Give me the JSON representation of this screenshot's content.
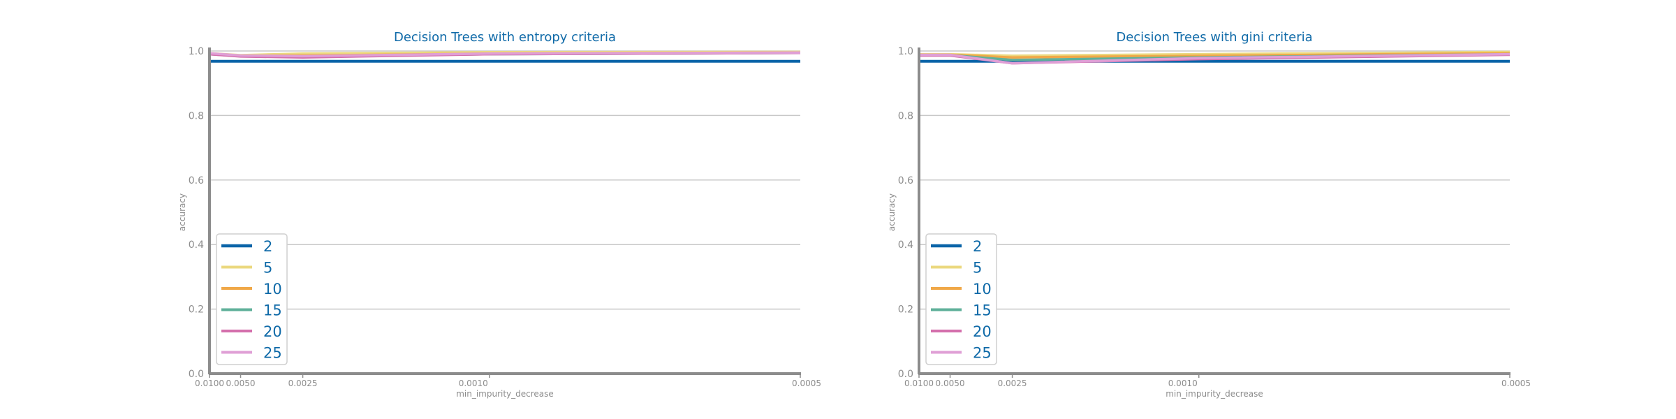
{
  "chart_data": [
    {
      "type": "line",
      "title": "Decision Trees with entropy criteria",
      "xlabel": "min_impurity_decrease",
      "ylabel": "accuracy",
      "x_scale": "reciprocal",
      "x": [
        0.01,
        0.005,
        0.0025,
        0.001,
        0.0005
      ],
      "x_tick_labels": [
        "0.0100",
        "0.0050",
        "0.0025",
        "0.0010",
        "0.0005"
      ],
      "ylim": [
        0.0,
        1.0
      ],
      "y_ticks": [
        "0.0",
        "0.2",
        "0.4",
        "0.6",
        "0.8",
        "1.0"
      ],
      "grid": "horizontal",
      "legend_position": "lower-left",
      "series": [
        {
          "name": "2",
          "color": "#0a64a8",
          "values": [
            0.968,
            0.968,
            0.968,
            0.968,
            0.968
          ]
        },
        {
          "name": "5",
          "color": "#ebd87f",
          "values": [
            0.993,
            0.987,
            0.992,
            0.996,
            0.997
          ]
        },
        {
          "name": "10",
          "color": "#f0a848",
          "values": [
            0.991,
            0.985,
            0.986,
            0.992,
            0.995
          ]
        },
        {
          "name": "15",
          "color": "#5fb09a",
          "values": [
            0.99,
            0.984,
            0.983,
            0.99,
            0.994
          ]
        },
        {
          "name": "20",
          "color": "#d46fac",
          "values": [
            0.99,
            0.983,
            0.98,
            0.99,
            0.994
          ]
        },
        {
          "name": "25",
          "color": "#df9fd6",
          "values": [
            0.993,
            0.986,
            0.984,
            0.992,
            0.995
          ]
        }
      ]
    },
    {
      "type": "line",
      "title": "Decision Trees with gini criteria",
      "xlabel": "min_impurity_decrease",
      "ylabel": "accuracy",
      "x_scale": "reciprocal",
      "x": [
        0.01,
        0.005,
        0.0025,
        0.001,
        0.0005
      ],
      "x_tick_labels": [
        "0.0100",
        "0.0050",
        "0.0025",
        "0.0010",
        "0.0005"
      ],
      "ylim": [
        0.0,
        1.0
      ],
      "y_ticks": [
        "0.0",
        "0.2",
        "0.4",
        "0.6",
        "0.8",
        "1.0"
      ],
      "grid": "horizontal",
      "legend_position": "lower-left",
      "series": [
        {
          "name": "2",
          "color": "#0a64a8",
          "values": [
            0.968,
            0.968,
            0.968,
            0.968,
            0.968
          ]
        },
        {
          "name": "5",
          "color": "#ebd87f",
          "values": [
            0.99,
            0.99,
            0.985,
            0.99,
            0.997
          ]
        },
        {
          "name": "10",
          "color": "#f0a848",
          "values": [
            0.988,
            0.988,
            0.98,
            0.985,
            0.993
          ]
        },
        {
          "name": "15",
          "color": "#5fb09a",
          "values": [
            0.987,
            0.987,
            0.972,
            0.98,
            0.99
          ]
        },
        {
          "name": "20",
          "color": "#d46fac",
          "values": [
            0.986,
            0.986,
            0.962,
            0.975,
            0.988
          ]
        },
        {
          "name": "25",
          "color": "#df9fd6",
          "values": [
            0.988,
            0.988,
            0.962,
            0.978,
            0.99
          ]
        }
      ]
    }
  ]
}
